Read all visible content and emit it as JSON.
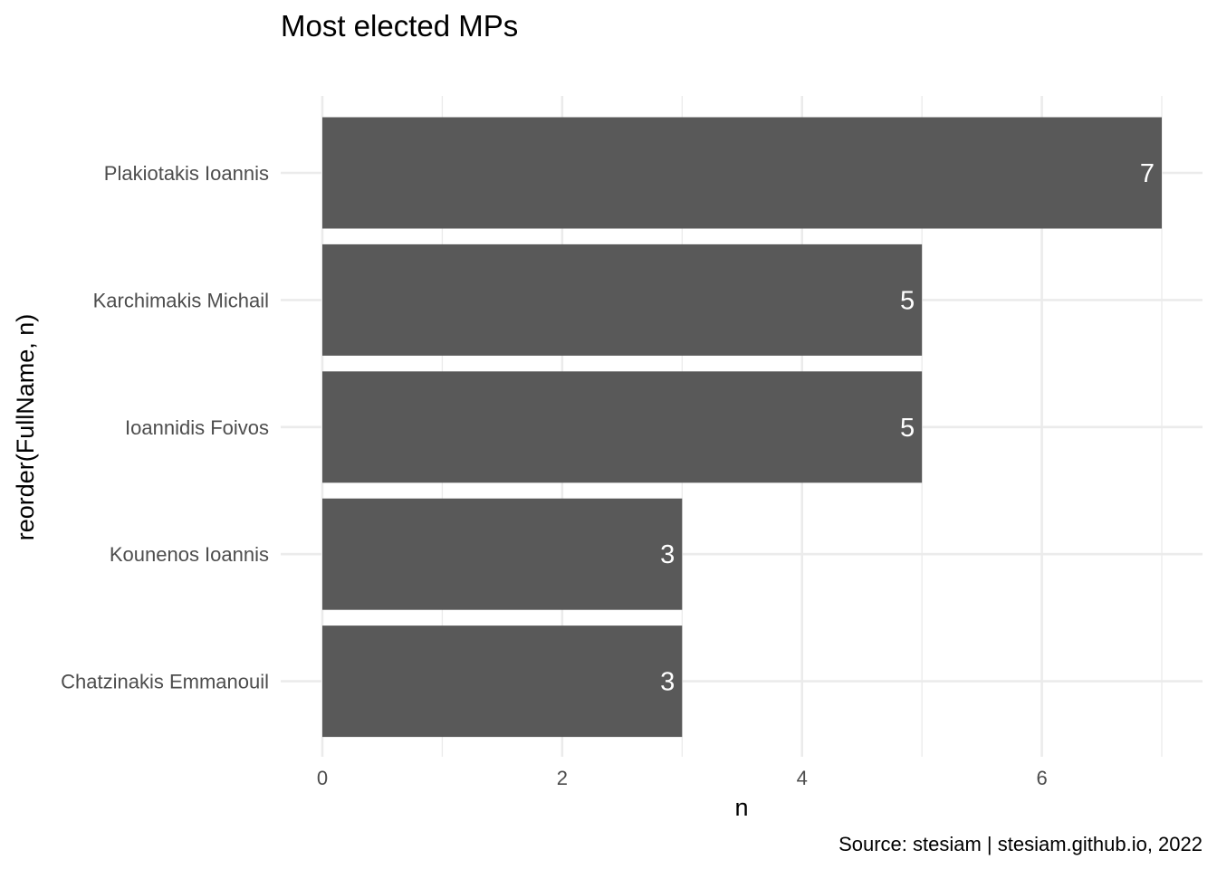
{
  "chart_data": {
    "type": "bar",
    "orientation": "horizontal",
    "title": "Most elected MPs",
    "xlabel": "n",
    "ylabel": "reorder(FullName, n)",
    "caption": "Source: stesiam | stesiam.github.io, 2022",
    "categories": [
      "Plakiotakis Ioannis",
      "Karchimakis Michail",
      "Ioannidis Foivos",
      "Kounenos Ioannis",
      "Chatzinakis Emmanouil"
    ],
    "values": [
      7,
      5,
      5,
      3,
      3
    ],
    "data_labels": [
      "7",
      "5",
      "5",
      "3",
      "3"
    ],
    "xlim": [
      0,
      7.3
    ],
    "x_ticks": [
      0,
      2,
      4,
      6
    ],
    "x_tick_labels": [
      "0",
      "2",
      "4",
      "6"
    ],
    "grid": true,
    "legend": "none",
    "colors": {
      "bar": "#595959",
      "grid": "#ebebeb",
      "background": "#ffffff",
      "data_label": "#ffffff"
    }
  }
}
